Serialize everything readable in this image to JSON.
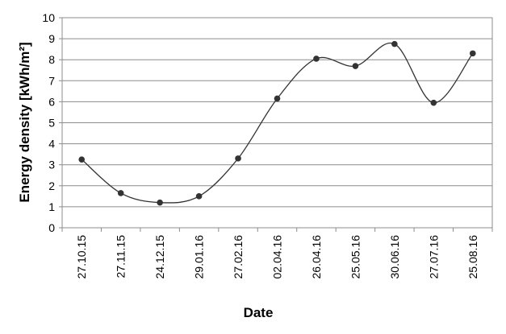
{
  "chart_data": {
    "type": "line",
    "x_label": "Date",
    "y_label": "Energy density [kWh/m²]",
    "categories": [
      "27.10.15",
      "27.11.15",
      "24.12.15",
      "29.01.16",
      "27.02.16",
      "02.04.16",
      "26.04.16",
      "25.05.16",
      "30.06.16",
      "27.07.16",
      "25.08.16"
    ],
    "values": [
      3.25,
      1.65,
      1.2,
      1.5,
      3.3,
      6.15,
      8.05,
      7.7,
      8.75,
      5.95,
      8.3
    ],
    "color": "#333333",
    "ylim": [
      0,
      10
    ],
    "yticks": [
      0,
      1,
      2,
      3,
      4,
      5,
      6,
      7,
      8,
      9,
      10
    ],
    "grid": true,
    "smooth": true
  }
}
